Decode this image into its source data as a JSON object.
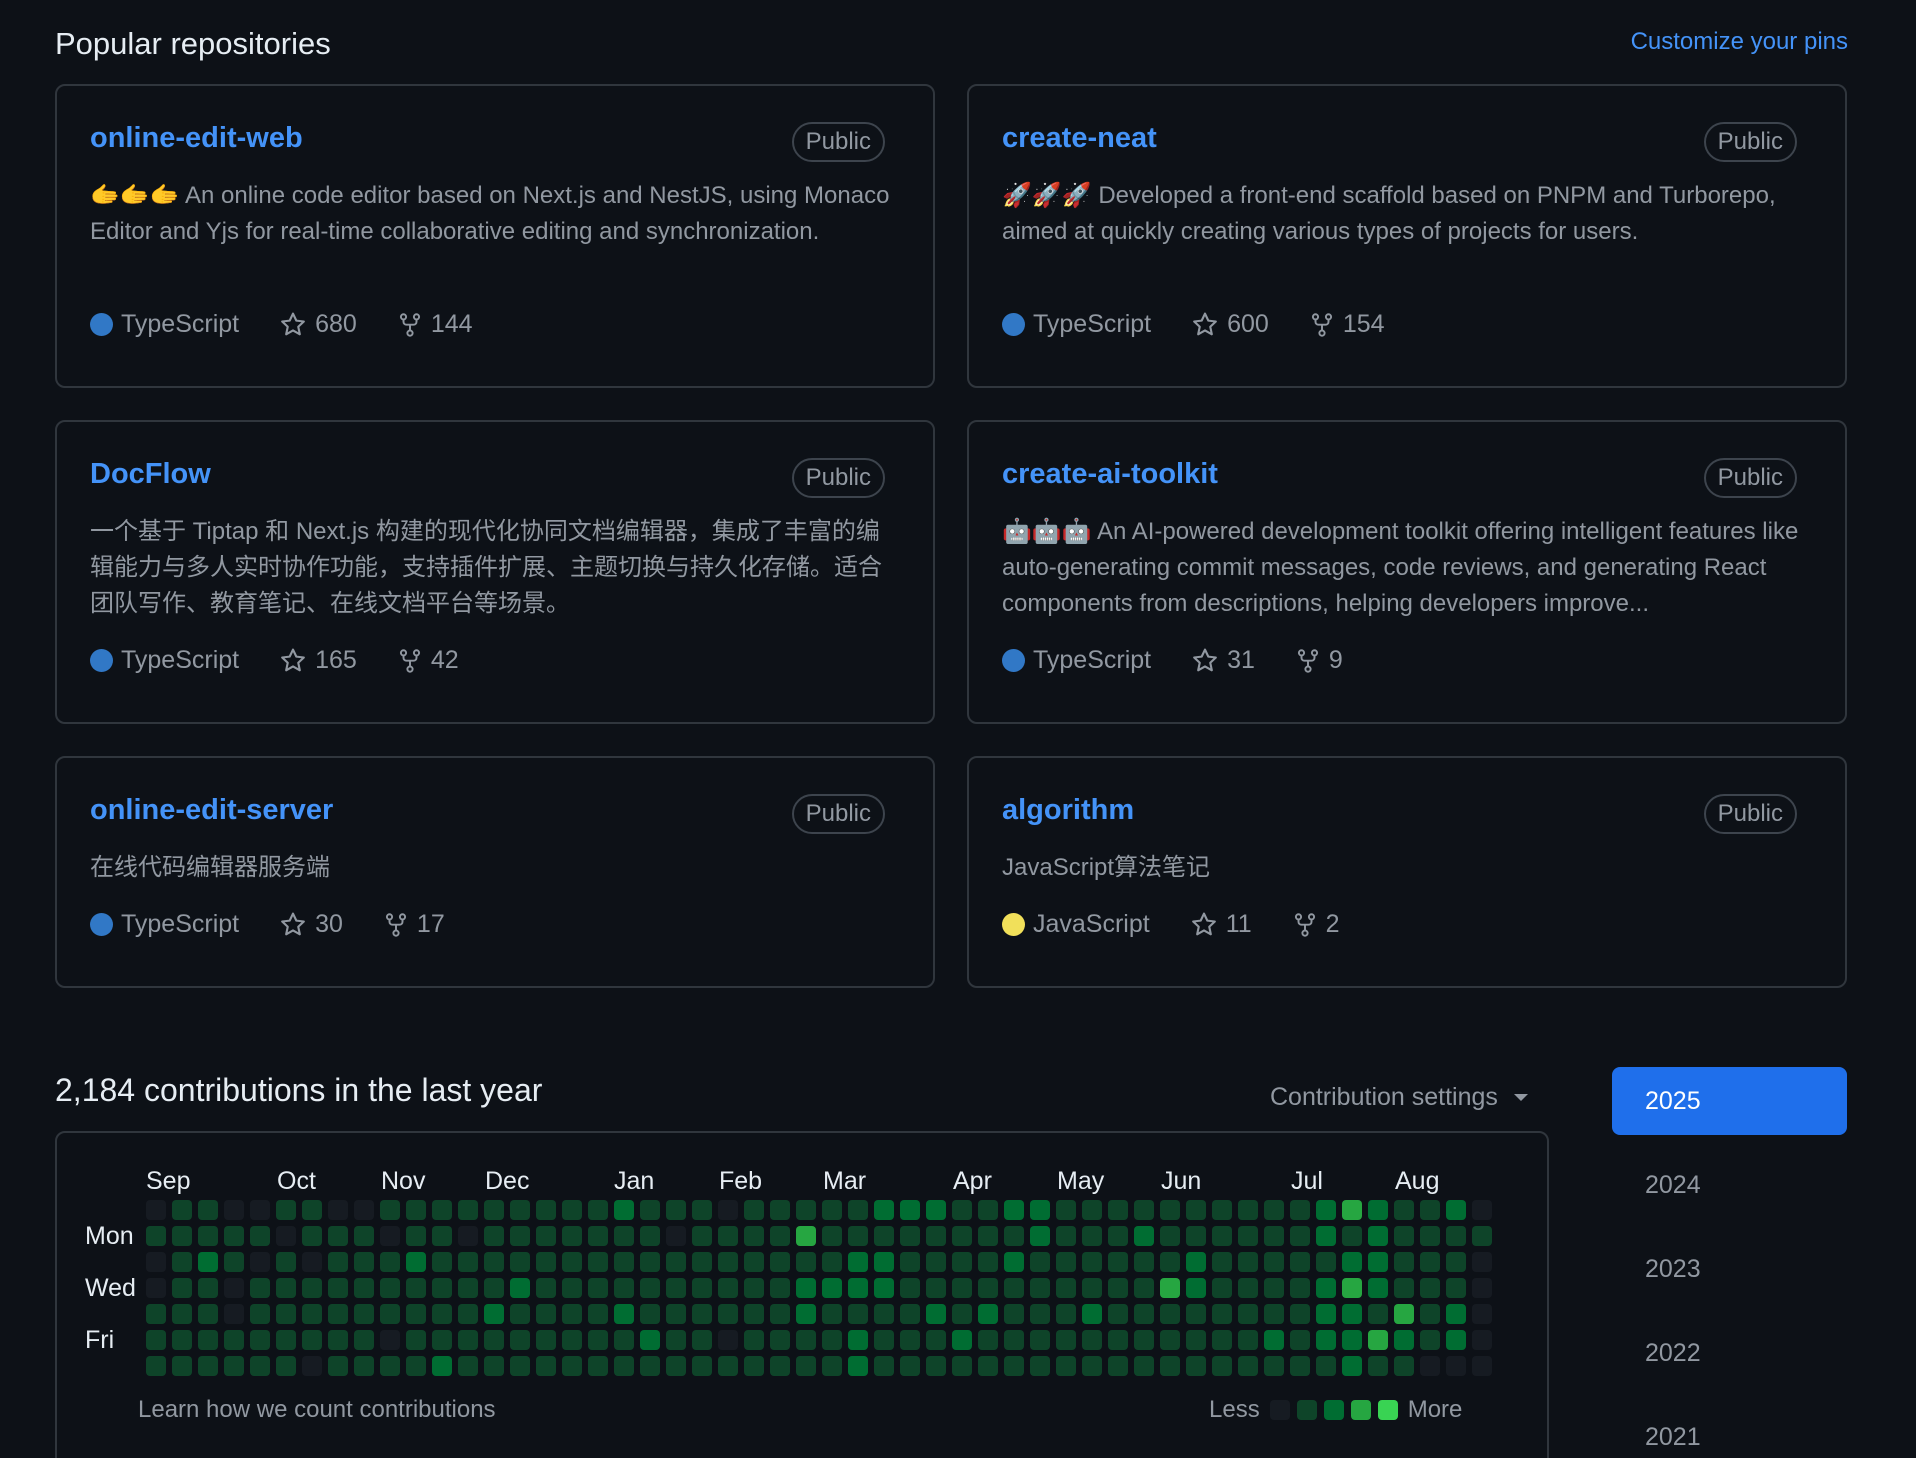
{
  "pinned": {
    "title": "Popular repositories",
    "customize_label": "Customize your pins",
    "repos": [
      {
        "name": "online-edit-web",
        "visibility": "Public",
        "description": "🫱🫱🫱 An online code editor based on Next.js and NestJS, using Monaco Editor and Yjs for real-time collaborative editing and synchronization.",
        "language": "TypeScript",
        "language_color": "#3178c6",
        "stars": "680",
        "forks": "144"
      },
      {
        "name": "create-neat",
        "visibility": "Public",
        "description": "🚀🚀🚀 Developed a front-end scaffold based on PNPM and Turborepo, aimed at quickly creating various types of projects for users.",
        "language": "TypeScript",
        "language_color": "#3178c6",
        "stars": "600",
        "forks": "154"
      },
      {
        "name": "DocFlow",
        "visibility": "Public",
        "description": "一个基于 Tiptap 和 Next.js 构建的现代化协同文档编辑器，集成了丰富的编辑能力与多人实时协作功能，支持插件扩展、主题切换与持久化存储。适合团队写作、教育笔记、在线文档平台等场景。",
        "language": "TypeScript",
        "language_color": "#3178c6",
        "stars": "165",
        "forks": "42"
      },
      {
        "name": "create-ai-toolkit",
        "visibility": "Public",
        "description": "🤖🤖🤖 An AI-powered development toolkit offering intelligent features like auto-generating commit messages, code reviews, and generating React components from descriptions, helping developers improve...",
        "language": "TypeScript",
        "language_color": "#3178c6",
        "stars": "31",
        "forks": "9"
      },
      {
        "name": "online-edit-server",
        "visibility": "Public",
        "description": "在线代码编辑器服务端",
        "language": "TypeScript",
        "language_color": "#3178c6",
        "stars": "30",
        "forks": "17"
      },
      {
        "name": "algorithm",
        "visibility": "Public",
        "description": "JavaScript算法笔记",
        "language": "JavaScript",
        "language_color": "#f1e05a",
        "stars": "11",
        "forks": "2"
      }
    ]
  },
  "contributions": {
    "title": "2,184 contributions in the last year",
    "settings_label": "Contribution settings",
    "months": [
      "Sep",
      "Oct",
      "Nov",
      "Dec",
      "Jan",
      "Feb",
      "Mar",
      "Apr",
      "May",
      "Jun",
      "Jul",
      "Aug"
    ],
    "days": [
      "Mon",
      "Wed",
      "Fri"
    ],
    "learn_label": "Learn how we count contributions",
    "legend_less": "Less",
    "legend_more": "More",
    "colors": [
      "#161b22",
      "#0e4429",
      "#006d32",
      "#26a641",
      "#39d353"
    ],
    "weeks": [
      [
        0,
        1,
        0,
        0,
        1,
        1,
        1
      ],
      [
        1,
        1,
        1,
        1,
        1,
        1,
        1
      ],
      [
        1,
        1,
        2,
        1,
        1,
        1,
        1
      ],
      [
        0,
        1,
        1,
        0,
        0,
        1,
        1
      ],
      [
        0,
        1,
        0,
        1,
        1,
        1,
        1
      ],
      [
        1,
        0,
        1,
        1,
        1,
        1,
        1
      ],
      [
        1,
        1,
        0,
        1,
        1,
        1,
        0
      ],
      [
        0,
        1,
        1,
        1,
        1,
        1,
        1
      ],
      [
        0,
        1,
        1,
        1,
        1,
        1,
        1
      ],
      [
        1,
        0,
        1,
        1,
        1,
        0,
        1
      ],
      [
        1,
        1,
        2,
        1,
        1,
        1,
        1
      ],
      [
        1,
        1,
        1,
        1,
        1,
        1,
        2
      ],
      [
        1,
        0,
        1,
        1,
        1,
        1,
        1
      ],
      [
        1,
        1,
        1,
        1,
        2,
        1,
        1
      ],
      [
        1,
        1,
        1,
        2,
        1,
        1,
        1
      ],
      [
        1,
        1,
        1,
        1,
        1,
        1,
        1
      ],
      [
        1,
        1,
        1,
        1,
        1,
        1,
        1
      ],
      [
        1,
        1,
        1,
        1,
        1,
        1,
        1
      ],
      [
        2,
        1,
        1,
        1,
        2,
        1,
        1
      ],
      [
        1,
        1,
        1,
        1,
        1,
        2,
        1
      ],
      [
        1,
        0,
        1,
        1,
        1,
        1,
        1
      ],
      [
        1,
        1,
        1,
        1,
        1,
        1,
        1
      ],
      [
        0,
        1,
        1,
        1,
        1,
        0,
        1
      ],
      [
        1,
        1,
        1,
        1,
        1,
        1,
        1
      ],
      [
        1,
        1,
        1,
        1,
        1,
        1,
        1
      ],
      [
        1,
        3,
        1,
        2,
        2,
        1,
        1
      ],
      [
        1,
        1,
        1,
        2,
        1,
        1,
        1
      ],
      [
        1,
        1,
        2,
        2,
        1,
        2,
        2
      ],
      [
        2,
        1,
        2,
        2,
        1,
        1,
        1
      ],
      [
        2,
        1,
        1,
        1,
        1,
        1,
        1
      ],
      [
        2,
        1,
        1,
        1,
        2,
        1,
        1
      ],
      [
        1,
        1,
        1,
        1,
        1,
        2,
        1
      ],
      [
        1,
        1,
        1,
        1,
        2,
        1,
        1
      ],
      [
        2,
        1,
        2,
        1,
        1,
        1,
        1
      ],
      [
        2,
        2,
        1,
        1,
        1,
        1,
        1
      ],
      [
        1,
        1,
        1,
        1,
        1,
        1,
        1
      ],
      [
        1,
        1,
        1,
        1,
        2,
        1,
        1
      ],
      [
        1,
        1,
        1,
        1,
        1,
        1,
        1
      ],
      [
        1,
        2,
        1,
        1,
        1,
        1,
        1
      ],
      [
        1,
        1,
        1,
        3,
        1,
        1,
        1
      ],
      [
        1,
        1,
        2,
        2,
        1,
        1,
        1
      ],
      [
        1,
        1,
        1,
        1,
        1,
        1,
        1
      ],
      [
        1,
        1,
        1,
        1,
        1,
        1,
        1
      ],
      [
        1,
        1,
        1,
        1,
        1,
        2,
        1
      ],
      [
        1,
        1,
        1,
        1,
        1,
        1,
        1
      ],
      [
        2,
        2,
        1,
        2,
        2,
        2,
        1
      ],
      [
        3,
        1,
        2,
        3,
        2,
        2,
        2
      ],
      [
        2,
        2,
        2,
        2,
        1,
        3,
        1
      ],
      [
        1,
        1,
        1,
        1,
        3,
        2,
        1
      ],
      [
        1,
        1,
        1,
        1,
        1,
        1,
        0
      ],
      [
        2,
        1,
        1,
        1,
        2,
        2,
        0
      ],
      [
        0,
        1,
        0,
        0,
        0,
        0,
        0
      ]
    ]
  },
  "years": {
    "items": [
      "2025",
      "2024",
      "2023",
      "2022",
      "2021"
    ],
    "active": "2025"
  }
}
